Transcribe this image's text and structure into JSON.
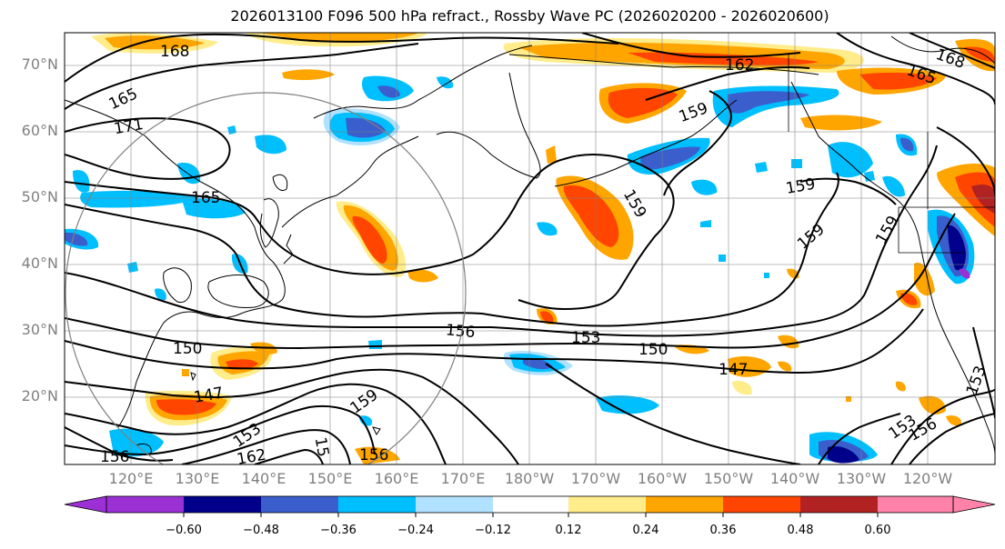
{
  "title": "2026013100 F096 500 hPa refract., Rossby Wave PC (2026020200 - 2026020600)",
  "colors": {
    "background": "#ffffff",
    "contour": "#000000",
    "coast": "#000000",
    "grid": "#808080",
    "circle": "#808080",
    "axis_label": "#808080"
  },
  "lat_labels": [
    "70°N",
    "60°N",
    "50°N",
    "40°N",
    "30°N",
    "20°N"
  ],
  "lon_labels": [
    "120°E",
    "130°E",
    "140°E",
    "150°E",
    "160°E",
    "170°E",
    "180°W",
    "170°W",
    "160°W",
    "150°W",
    "140°W",
    "130°W",
    "120°W"
  ],
  "colorbar": {
    "colors": [
      "#9b30d5",
      "#00008b",
      "#3a5fcd",
      "#00bfff",
      "#b0e2ff",
      "#ffffff",
      "#ffec8b",
      "#ffa500",
      "#ff4500",
      "#b22222",
      "#ff82ab"
    ],
    "ticks": [
      "−0.60",
      "−0.48",
      "−0.36",
      "−0.24",
      "−0.12",
      "0.12",
      "0.24",
      "0.36",
      "0.48",
      "0.60"
    ]
  },
  "contour_labels": [
    "168",
    "165",
    "171",
    "168",
    "165",
    "162",
    "159",
    "165",
    "159",
    "159",
    "159",
    "159",
    "156",
    "153",
    "150",
    "150",
    "147",
    "147",
    "159",
    "153",
    "162",
    "156",
    "153",
    "156",
    "153",
    "15",
    "156"
  ]
}
